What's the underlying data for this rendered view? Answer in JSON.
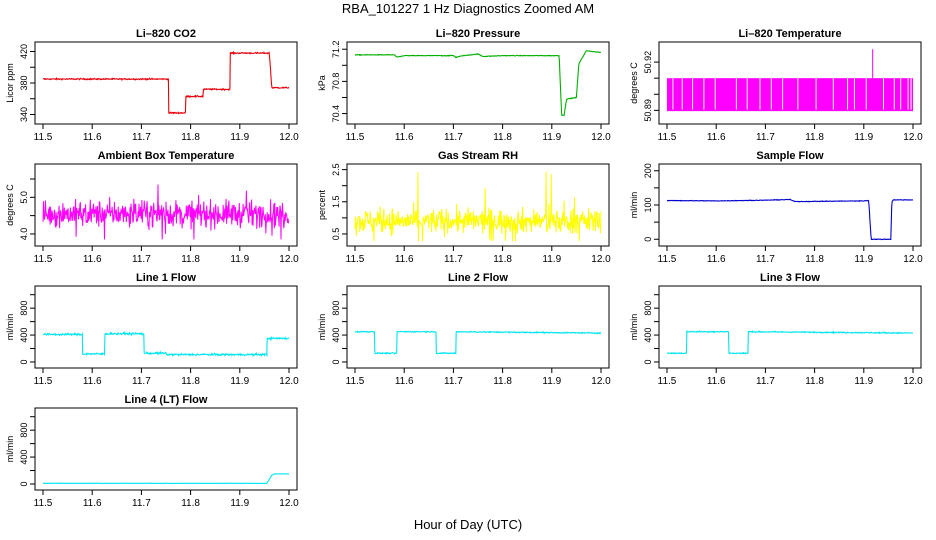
{
  "figure": {
    "title": "RBA_101227  1 Hz Diagnostics Zoomed AM",
    "xlabel": "Hour of Day (UTC)"
  },
  "chart_data": [
    {
      "type": "line",
      "title": "Li–820 CO2",
      "ylabel": "Licor ppm",
      "color": "#e8000b",
      "xlim": [
        11.5,
        12.0
      ],
      "ylim": [
        333,
        427
      ],
      "xticks": [
        "11.5",
        "11.6",
        "11.7",
        "11.8",
        "11.9",
        "12.0"
      ],
      "xtick_values": [
        11.5,
        11.6,
        11.7,
        11.8,
        11.9,
        12.0
      ],
      "yticks": [
        "340",
        "380",
        "420"
      ],
      "ytick_values": [
        340,
        380,
        420
      ],
      "yticks_minor": [
        "360",
        "400"
      ],
      "ytick_minor_values": [
        360,
        400
      ],
      "noise": 0.8,
      "x": [
        11.5,
        11.755,
        11.755,
        11.79,
        11.79,
        11.825,
        11.825,
        11.88,
        11.88,
        11.96,
        11.965,
        12.0
      ],
      "y": [
        385,
        385,
        342,
        342,
        363,
        363,
        372,
        372,
        418,
        418,
        374,
        374
      ]
    },
    {
      "type": "line",
      "title": "Li–820 Pressure",
      "ylabel": "kPa",
      "color": "#00b000",
      "xlim": [
        11.5,
        12.0
      ],
      "ylim": [
        70.32,
        71.24
      ],
      "xticks": [
        "11.5",
        "11.6",
        "11.7",
        "11.8",
        "11.9",
        "12.0"
      ],
      "xtick_values": [
        11.5,
        11.6,
        11.7,
        11.8,
        11.9,
        12.0
      ],
      "yticks": [
        "70.4",
        "70.8",
        "71.2"
      ],
      "ytick_values": [
        70.4,
        70.8,
        71.2
      ],
      "yticks_minor": [
        "70.6",
        "71.0"
      ],
      "ytick_minor_values": [
        70.6,
        71.0
      ],
      "noise": 0.004,
      "x": [
        11.5,
        11.58,
        11.585,
        11.6,
        11.7,
        11.705,
        11.72,
        11.75,
        11.76,
        11.8,
        11.9,
        11.915,
        11.92,
        11.925,
        11.93,
        11.95,
        11.955,
        11.97,
        12.0
      ],
      "y": [
        71.13,
        71.13,
        71.1,
        71.12,
        71.12,
        71.1,
        71.12,
        71.14,
        71.11,
        71.12,
        71.12,
        71.12,
        70.38,
        70.38,
        70.58,
        70.6,
        71.02,
        71.18,
        71.16
      ]
    },
    {
      "type": "spike",
      "title": "Li–820 Temperature",
      "ylabel": "degrees C",
      "color": "#ff00ff",
      "xlim": [
        11.5,
        12.0
      ],
      "ylim": [
        50.884,
        50.93
      ],
      "xticks": [
        "11.5",
        "11.6",
        "11.7",
        "11.8",
        "11.9",
        "12.0"
      ],
      "xtick_values": [
        11.5,
        11.6,
        11.7,
        11.8,
        11.9,
        12.0
      ],
      "yticks": [
        "50.89",
        "50.92"
      ],
      "ytick_values": [
        50.89,
        50.92
      ],
      "yticks_minor": [
        "50.90",
        "50.91"
      ],
      "ytick_minor_values": [
        50.9,
        50.91
      ],
      "base": 50.89,
      "high": 50.91,
      "spike_x": 11.918,
      "spike_y": 50.928,
      "gap_x": [
        11.512,
        11.531,
        11.552,
        11.575,
        11.598,
        11.641,
        11.663,
        11.689,
        11.712,
        11.735,
        11.766,
        11.803,
        11.838,
        11.867,
        11.881,
        11.905,
        11.94,
        11.962,
        11.975,
        11.99,
        11.996
      ]
    },
    {
      "type": "noise",
      "title": "Ambient Box Temperature",
      "ylabel": "degrees C",
      "color": "#ff00ff",
      "xlim": [
        11.5,
        12.0
      ],
      "ylim": [
        3.78,
        5.8
      ],
      "xticks": [
        "11.5",
        "11.6",
        "11.7",
        "11.8",
        "11.9",
        "12.0"
      ],
      "xtick_values": [
        11.5,
        11.6,
        11.7,
        11.8,
        11.9,
        12.0
      ],
      "yticks": [
        "4.0",
        "5.0"
      ],
      "ytick_values": [
        4.0,
        5.0
      ],
      "yticks_minor": [
        "4.5",
        "5.5"
      ],
      "ytick_minor_values": [
        4.5,
        5.5
      ],
      "mean": 4.55,
      "spread": 0.35,
      "lo": 3.85,
      "hi": 5.75
    },
    {
      "type": "noise",
      "title": "Gas Stream RH",
      "ylabel": "percent",
      "color": "#ffff00",
      "xlim": [
        11.5,
        12.0
      ],
      "ylim": [
        0.25,
        2.55
      ],
      "xticks": [
        "11.5",
        "11.6",
        "11.7",
        "11.8",
        "11.9",
        "12.0"
      ],
      "xtick_values": [
        11.5,
        11.6,
        11.7,
        11.8,
        11.9,
        12.0
      ],
      "yticks": [
        "0.5",
        "1.5",
        "2.5"
      ],
      "ytick_values": [
        0.5,
        1.5,
        2.5
      ],
      "yticks_minor": [
        "1.0",
        "2.0"
      ],
      "ytick_minor_values": [
        1.0,
        2.0
      ],
      "mean": 0.9,
      "spread": 0.38,
      "lo": 0.28,
      "hi": 2.5
    },
    {
      "type": "line",
      "title": "Sample Flow",
      "ylabel": "ml/min",
      "color": "#0000cc",
      "xlim": [
        11.5,
        12.0
      ],
      "ylim": [
        -8,
        208
      ],
      "xticks": [
        "11.5",
        "11.6",
        "11.7",
        "11.8",
        "11.9",
        "12.0"
      ],
      "xtick_values": [
        11.5,
        11.6,
        11.7,
        11.8,
        11.9,
        12.0
      ],
      "yticks": [
        "0",
        "100",
        "200"
      ],
      "ytick_values": [
        0,
        100,
        200
      ],
      "yticks_minor": [
        "50",
        "150"
      ],
      "ytick_minor_values": [
        50,
        150
      ],
      "noise": 0.8,
      "x": [
        11.5,
        11.6,
        11.7,
        11.75,
        11.76,
        11.9,
        11.91,
        11.915,
        11.955,
        11.957,
        11.96,
        12.0
      ],
      "y": [
        113,
        112,
        114,
        116,
        110,
        112,
        113,
        0,
        0,
        110,
        115,
        115
      ]
    },
    {
      "type": "line",
      "title": "Line 1 Flow",
      "ylabel": "ml/min",
      "color": "#00e5ee",
      "xlim": [
        11.5,
        12.0
      ],
      "ylim": [
        -30,
        1070
      ],
      "xticks": [
        "11.5",
        "11.6",
        "11.7",
        "11.8",
        "11.9",
        "12.0"
      ],
      "xtick_values": [
        11.5,
        11.6,
        11.7,
        11.8,
        11.9,
        12.0
      ],
      "yticks": [
        "0",
        "400",
        "800"
      ],
      "ytick_values": [
        0,
        400,
        800
      ],
      "yticks_minor": [
        "200",
        "600",
        "1000"
      ],
      "ytick_minor_values": [
        200,
        600,
        1000
      ],
      "noise": 14,
      "x": [
        11.5,
        11.58,
        11.58,
        11.625,
        11.625,
        11.705,
        11.705,
        11.75,
        11.75,
        11.955,
        11.955,
        12.0
      ],
      "y": [
        410,
        410,
        120,
        120,
        420,
        420,
        130,
        130,
        110,
        110,
        350,
        350
      ]
    },
    {
      "type": "line",
      "title": "Line 2 Flow",
      "ylabel": "ml/min",
      "color": "#00e5ee",
      "xlim": [
        11.5,
        12.0
      ],
      "ylim": [
        -30,
        1070
      ],
      "xticks": [
        "11.5",
        "11.6",
        "11.7",
        "11.8",
        "11.9",
        "12.0"
      ],
      "xtick_values": [
        11.5,
        11.6,
        11.7,
        11.8,
        11.9,
        12.0
      ],
      "yticks": [
        "0",
        "400",
        "800"
      ],
      "ytick_values": [
        0,
        400,
        800
      ],
      "yticks_minor": [
        "200",
        "600",
        "1000"
      ],
      "ytick_minor_values": [
        200,
        600,
        1000
      ],
      "noise": 8,
      "x": [
        11.5,
        11.54,
        11.54,
        11.585,
        11.585,
        11.665,
        11.665,
        11.705,
        11.705,
        12.0
      ],
      "y": [
        450,
        450,
        130,
        130,
        450,
        450,
        130,
        130,
        450,
        430
      ]
    },
    {
      "type": "line",
      "title": "Line 3 Flow",
      "ylabel": "ml/min",
      "color": "#00e5ee",
      "xlim": [
        11.5,
        12.0
      ],
      "ylim": [
        -30,
        1070
      ],
      "xticks": [
        "11.5",
        "11.6",
        "11.7",
        "11.8",
        "11.9",
        "12.0"
      ],
      "xtick_values": [
        11.5,
        11.6,
        11.7,
        11.8,
        11.9,
        12.0
      ],
      "yticks": [
        "0",
        "400",
        "800"
      ],
      "ytick_values": [
        0,
        400,
        800
      ],
      "yticks_minor": [
        "200",
        "600",
        "1000"
      ],
      "ytick_minor_values": [
        200,
        600,
        1000
      ],
      "noise": 8,
      "x": [
        11.5,
        11.54,
        11.54,
        11.625,
        11.625,
        11.665,
        11.665,
        12.0
      ],
      "y": [
        130,
        130,
        450,
        450,
        130,
        130,
        450,
        430
      ]
    },
    {
      "type": "line",
      "title": "Line 4 (LT) Flow",
      "ylabel": "ml/min",
      "color": "#00e5ee",
      "xlim": [
        11.5,
        12.0
      ],
      "ylim": [
        -30,
        1070
      ],
      "xticks": [
        "11.5",
        "11.6",
        "11.7",
        "11.8",
        "11.9",
        "12.0"
      ],
      "xtick_values": [
        11.5,
        11.6,
        11.7,
        11.8,
        11.9,
        12.0
      ],
      "yticks": [
        "0",
        "400",
        "800"
      ],
      "ytick_values": [
        0,
        400,
        800
      ],
      "yticks_minor": [
        "200",
        "600",
        "1000"
      ],
      "ytick_minor_values": [
        200,
        600,
        1000
      ],
      "noise": 2,
      "x": [
        11.5,
        11.955,
        11.965,
        11.97,
        12.0
      ],
      "y": [
        10,
        10,
        130,
        150,
        150
      ]
    }
  ]
}
